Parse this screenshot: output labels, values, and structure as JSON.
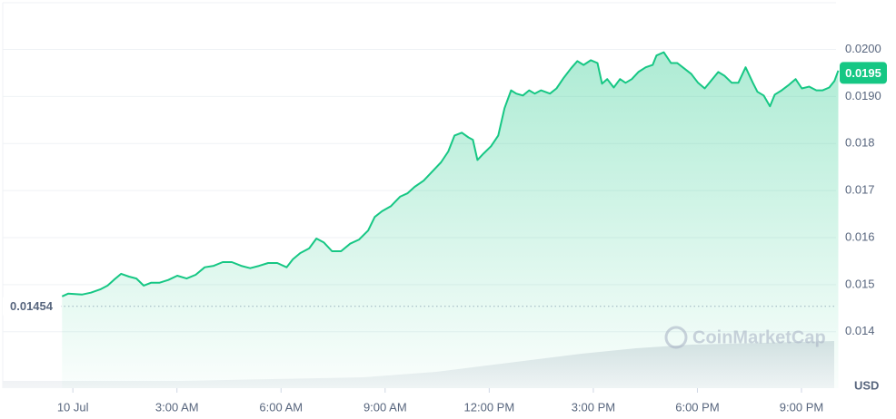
{
  "chart_data": {
    "type": "line",
    "fill": true,
    "color": "#16c784",
    "grid": true,
    "ylabel": "USD",
    "watermark": "CoinMarketCap",
    "open_price": {
      "value": 0.01454,
      "label": "0.01454"
    },
    "last_price": {
      "value": 0.0195,
      "label": "0.0195"
    },
    "xlim": [
      -2.1,
      22.1
    ],
    "ylim": [
      0.0128,
      0.02105
    ],
    "xticks": [
      {
        "value": 0,
        "label": "10 Jul"
      },
      {
        "value": 3,
        "label": "3:00 AM"
      },
      {
        "value": 6,
        "label": "6:00 AM"
      },
      {
        "value": 9,
        "label": "9:00 AM"
      },
      {
        "value": 12,
        "label": "12:00 PM"
      },
      {
        "value": 15,
        "label": "3:00 PM"
      },
      {
        "value": 18,
        "label": "6:00 PM"
      },
      {
        "value": 21,
        "label": "9:00 PM"
      }
    ],
    "yticks": [
      0.014,
      0.015,
      0.016,
      0.017,
      0.018,
      {
        "value": 0.019,
        "label": "0.0190"
      },
      {
        "value": 0.02,
        "label": "0.0200"
      }
    ],
    "x": [
      -0.31,
      -0.13,
      0.26,
      0.52,
      0.79,
      1.0,
      1.18,
      1.39,
      1.62,
      1.83,
      2.04,
      2.25,
      2.49,
      2.75,
      3.01,
      3.28,
      3.54,
      3.8,
      4.06,
      4.32,
      4.58,
      4.85,
      5.11,
      5.37,
      5.63,
      5.89,
      6.16,
      6.34,
      6.55,
      6.81,
      7.02,
      7.23,
      7.47,
      7.73,
      7.99,
      8.25,
      8.51,
      8.7,
      8.91,
      9.17,
      9.43,
      9.64,
      9.85,
      10.11,
      10.35,
      10.61,
      10.82,
      11.0,
      11.21,
      11.4,
      11.53,
      11.66,
      11.84,
      12.05,
      12.26,
      12.44,
      12.63,
      12.78,
      12.97,
      13.15,
      13.31,
      13.49,
      13.75,
      13.94,
      14.15,
      14.36,
      14.54,
      14.72,
      14.93,
      15.12,
      15.25,
      15.4,
      15.59,
      15.77,
      15.93,
      16.11,
      16.3,
      16.51,
      16.71,
      16.82,
      17.03,
      17.24,
      17.42,
      17.61,
      17.82,
      18.02,
      18.21,
      18.39,
      18.6,
      18.78,
      18.99,
      19.18,
      19.39,
      19.6,
      19.73,
      19.91,
      20.09,
      20.23,
      20.43,
      20.64,
      20.83,
      21.01,
      21.22,
      21.43,
      21.61,
      21.8,
      21.95,
      22.06
    ],
    "values": [
      0.01475,
      0.01481,
      0.01479,
      0.01483,
      0.0149,
      0.01498,
      0.0151,
      0.01523,
      0.01517,
      0.01513,
      0.01498,
      0.01504,
      0.01504,
      0.0151,
      0.01519,
      0.01513,
      0.01521,
      0.01537,
      0.0154,
      0.01548,
      0.01548,
      0.0154,
      0.01535,
      0.0154,
      0.01546,
      0.01546,
      0.01537,
      0.01554,
      0.01567,
      0.01577,
      0.01598,
      0.0159,
      0.01571,
      0.01571,
      0.01587,
      0.01596,
      0.01615,
      0.01644,
      0.01656,
      0.01667,
      0.01687,
      0.01694,
      0.01708,
      0.01721,
      0.0174,
      0.0176,
      0.01783,
      0.01817,
      0.01823,
      0.01813,
      0.01808,
      0.01765,
      0.01779,
      0.01794,
      0.01817,
      0.01875,
      0.01913,
      0.01906,
      0.01902,
      0.01913,
      0.01906,
      0.01913,
      0.01906,
      0.01917,
      0.0194,
      0.0196,
      0.01975,
      0.01967,
      0.01977,
      0.01971,
      0.01927,
      0.01937,
      0.01919,
      0.01937,
      0.01929,
      0.01937,
      0.01952,
      0.01962,
      0.01967,
      0.01987,
      0.01994,
      0.01971,
      0.01971,
      0.0196,
      0.01948,
      0.01929,
      0.01917,
      0.01933,
      0.01952,
      0.01944,
      0.01929,
      0.01929,
      0.01962,
      0.01929,
      0.0191,
      0.01902,
      0.01879,
      0.01904,
      0.01913,
      0.01925,
      0.01937,
      0.01917,
      0.01921,
      0.01913,
      0.01913,
      0.01919,
      0.01933,
      0.01955
    ]
  }
}
